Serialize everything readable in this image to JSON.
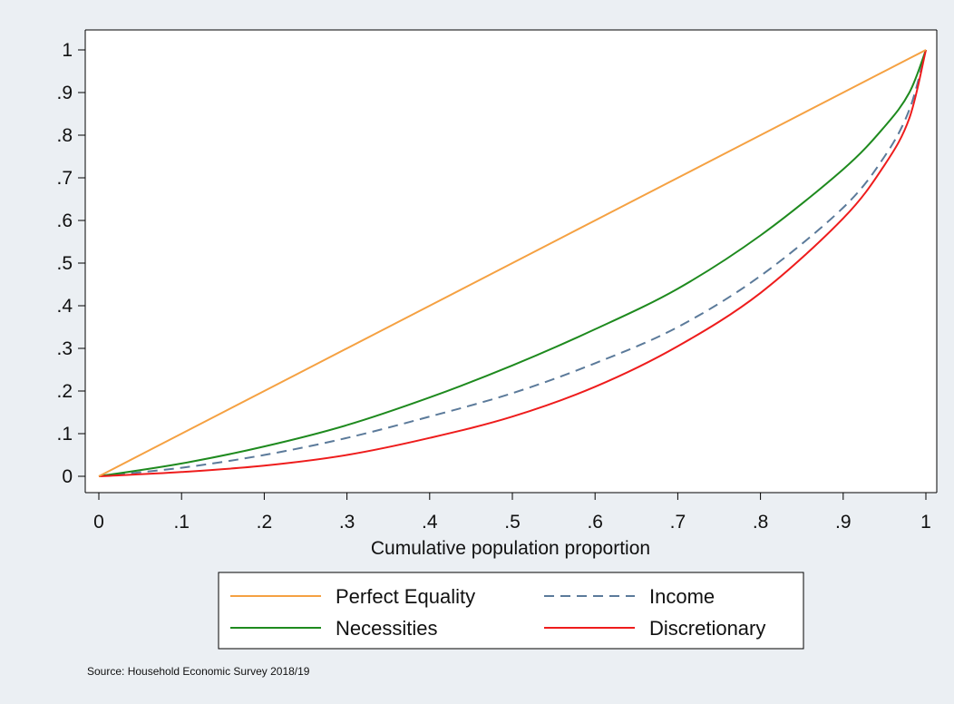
{
  "chart_data": {
    "type": "line",
    "title": "",
    "xlabel": "Cumulative population proportion",
    "ylabel": "",
    "xlim": [
      0,
      1
    ],
    "ylim": [
      0,
      1
    ],
    "x_ticks": [
      0,
      0.1,
      0.2,
      0.3,
      0.4,
      0.5,
      0.6,
      0.7,
      0.8,
      0.9,
      1
    ],
    "y_ticks": [
      0,
      0.1,
      0.2,
      0.3,
      0.4,
      0.5,
      0.6,
      0.7,
      0.8,
      0.9,
      1
    ],
    "x_tick_labels": [
      "0",
      ".1",
      ".2",
      ".3",
      ".4",
      ".5",
      ".6",
      ".7",
      ".8",
      ".9",
      "1"
    ],
    "y_tick_labels": [
      "0",
      ".1",
      ".2",
      ".3",
      ".4",
      ".5",
      ".6",
      ".7",
      ".8",
      ".9",
      "1"
    ],
    "grid": false,
    "legend_position": "bottom",
    "x": [
      0,
      0.1,
      0.2,
      0.3,
      0.4,
      0.5,
      0.6,
      0.7,
      0.8,
      0.9,
      0.95,
      0.98,
      1
    ],
    "series": [
      {
        "name": "Perfect Equality",
        "color": "#f5a142",
        "style": "solid",
        "values": [
          0,
          0.1,
          0.2,
          0.3,
          0.4,
          0.5,
          0.6,
          0.7,
          0.8,
          0.9,
          0.95,
          0.98,
          1
        ]
      },
      {
        "name": "Income",
        "color": "#5b7a9a",
        "style": "dashed",
        "values": [
          0,
          0.02,
          0.05,
          0.09,
          0.14,
          0.195,
          0.265,
          0.35,
          0.47,
          0.63,
          0.75,
          0.86,
          1
        ]
      },
      {
        "name": "Necessities",
        "color": "#1e8a1e",
        "style": "solid",
        "values": [
          0,
          0.03,
          0.07,
          0.12,
          0.185,
          0.26,
          0.345,
          0.44,
          0.565,
          0.72,
          0.82,
          0.9,
          1
        ]
      },
      {
        "name": "Discretionary",
        "color": "#ee1c1c",
        "style": "solid",
        "values": [
          0,
          0.01,
          0.025,
          0.05,
          0.09,
          0.14,
          0.21,
          0.305,
          0.43,
          0.605,
          0.73,
          0.84,
          1
        ]
      }
    ]
  },
  "legend_order": [
    0,
    1,
    2,
    3
  ],
  "source_note": "Source: Household Economic Survey 2018/19"
}
